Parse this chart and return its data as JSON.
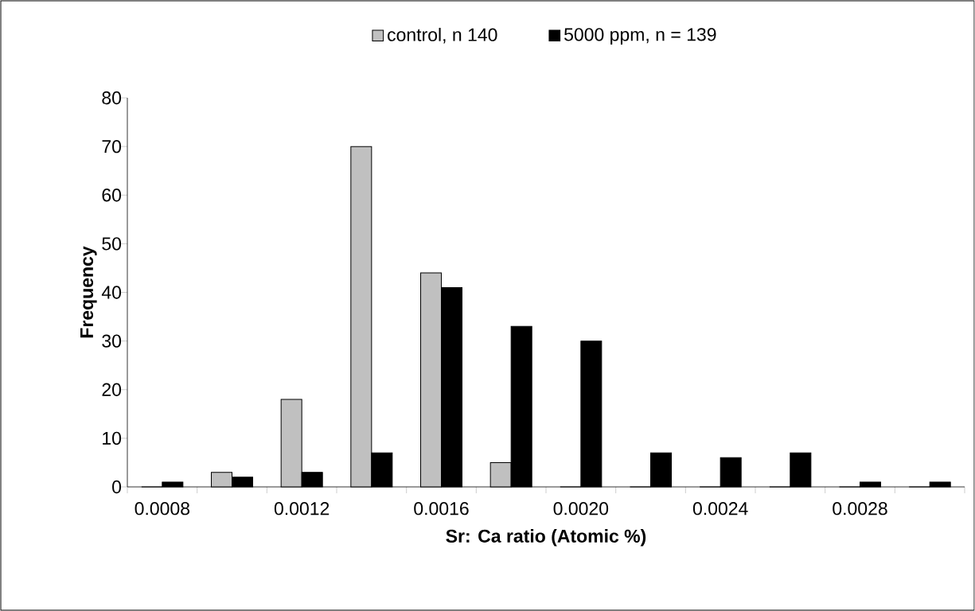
{
  "chart_data": {
    "type": "bar",
    "xlabel": "Sr: Ca ratio (Atomic %)",
    "ylabel": "Frequency",
    "categories": [
      "0.0008",
      null,
      "0.0012",
      null,
      "0.0016",
      null,
      "0.0020",
      null,
      "0.0024",
      null,
      "0.0028",
      null
    ],
    "series": [
      {
        "name": "control, n 140",
        "color": "#c0c0c0",
        "values": [
          0,
          3,
          18,
          70,
          44,
          5,
          0,
          0,
          0,
          0,
          0,
          0
        ]
      },
      {
        "name": "5000 ppm, n = 139",
        "color": "#000000",
        "values": [
          1,
          2,
          3,
          7,
          41,
          33,
          30,
          7,
          6,
          7,
          1,
          1
        ]
      }
    ],
    "ylim": [
      0,
      80
    ],
    "yticks": [
      0,
      10,
      20,
      30,
      40,
      50,
      60,
      70,
      80
    ],
    "legend": "top"
  }
}
